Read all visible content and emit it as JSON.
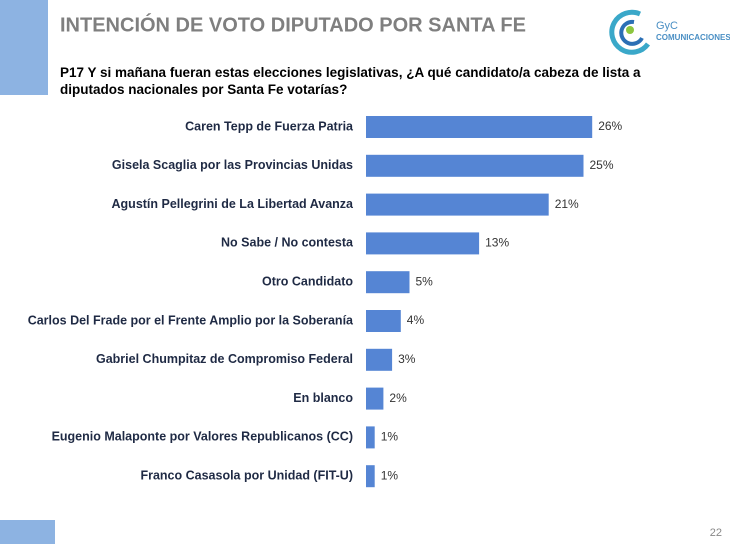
{
  "slide": {
    "logo_name": "GyC",
    "logo_sub": "COMUNICACIONES",
    "page_number": "22"
  },
  "chart_data": {
    "type": "bar",
    "orientation": "horizontal",
    "title": "INTENCIÓN DE VOTO DIPUTADO POR SANTA FE",
    "subtitle": "P17 Y si mañana fueran estas elecciones legislativas, ¿A qué candidato/a cabeza de lista a diputados nacionales por Santa Fe votarías?",
    "categories": [
      "Caren Tepp de Fuerza Patria",
      "Gisela Scaglia por las Provincias Unidas",
      "Agustín Pellegrini de La Libertad Avanza",
      "No Sabe / No contesta",
      "Otro Candidato",
      "Carlos Del Frade por el Frente Amplio por la Soberanía",
      "Gabriel Chumpitaz de Compromiso Federal",
      "En blanco",
      "Eugenio Malaponte por Valores Republicanos (CC)",
      "Franco Casasola por Unidad (FIT-U)"
    ],
    "values": [
      26,
      25,
      21,
      13,
      5,
      4,
      3,
      2,
      1,
      1
    ],
    "value_labels": [
      "26%",
      "25%",
      "21%",
      "13%",
      "5%",
      "4%",
      "3%",
      "2%",
      "1%",
      "1%"
    ],
    "color": "#5585d4"
  }
}
